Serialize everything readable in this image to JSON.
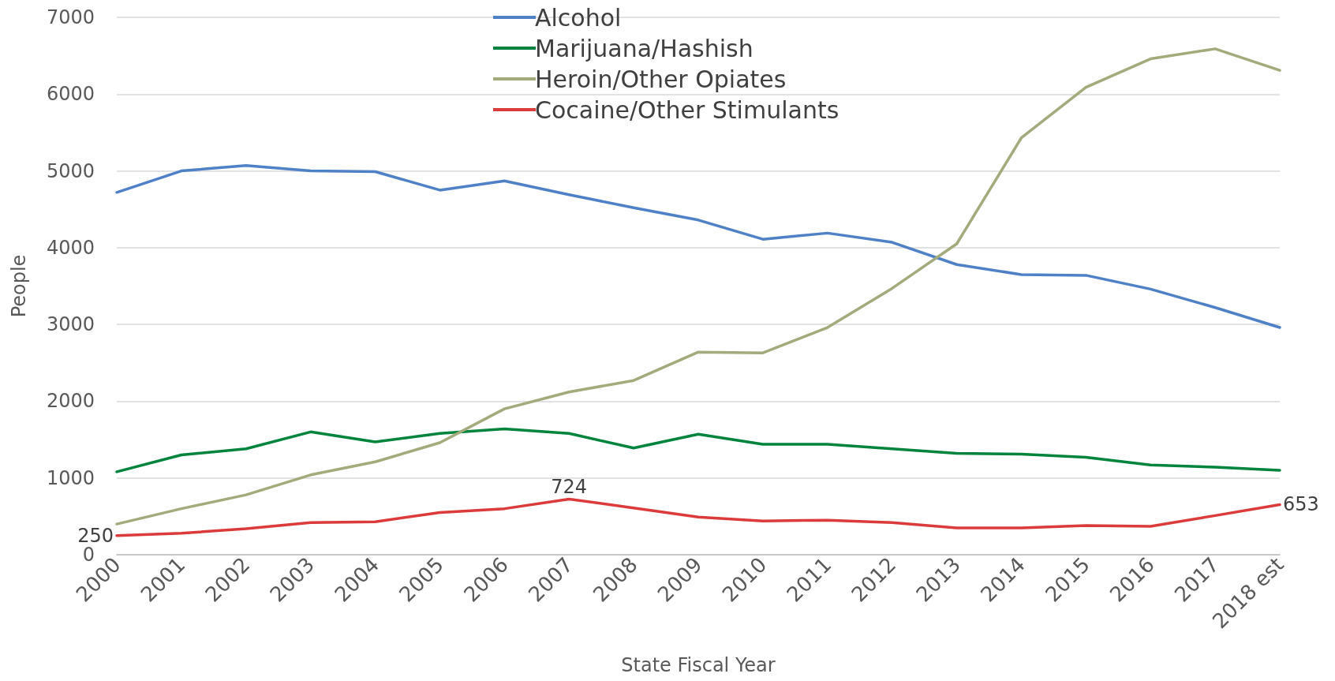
{
  "chart_data": {
    "type": "line",
    "xlabel": "State Fiscal Year",
    "ylabel": "People",
    "categories": [
      "2000",
      "2001",
      "2002",
      "2003",
      "2004",
      "2005",
      "2006",
      "2007",
      "2008",
      "2009",
      "2010",
      "2011",
      "2012",
      "2013",
      "2014",
      "2015",
      "2016",
      "2017",
      "2018 est"
    ],
    "series": [
      {
        "name": "Alcohol",
        "color": "#4f81c7",
        "values": [
          4720,
          5000,
          5070,
          5000,
          4990,
          4750,
          4870,
          4690,
          4520,
          4360,
          4110,
          4190,
          4070,
          3780,
          3650,
          3640,
          3460,
          3220,
          2960
        ]
      },
      {
        "name": "Marijuana/Hashish",
        "color": "#00843d",
        "values": [
          1080,
          1300,
          1380,
          1600,
          1470,
          1580,
          1640,
          1580,
          1390,
          1570,
          1440,
          1440,
          1380,
          1320,
          1310,
          1270,
          1170,
          1140,
          1100
        ]
      },
      {
        "name": "Heroin/Other Opiates",
        "color": "#a3ab7c",
        "values": [
          400,
          600,
          780,
          1040,
          1210,
          1460,
          1900,
          2120,
          2270,
          2640,
          2630,
          2960,
          3470,
          4050,
          5430,
          6090,
          6460,
          6590,
          6310
        ]
      },
      {
        "name": "Cocaine/Other Stimulants",
        "color": "#dc3b3b",
        "values": [
          250,
          280,
          340,
          420,
          430,
          550,
          600,
          724,
          610,
          490,
          440,
          450,
          420,
          350,
          350,
          380,
          370,
          510,
          653
        ],
        "value_labels": [
          "250",
          null,
          null,
          null,
          null,
          null,
          null,
          "724",
          null,
          null,
          null,
          null,
          null,
          null,
          null,
          null,
          null,
          null,
          "653"
        ]
      }
    ],
    "ylim": [
      0,
      7000
    ],
    "yticks": [
      0,
      1000,
      2000,
      3000,
      4000,
      5000,
      6000,
      7000
    ],
    "grid": "y",
    "legend": "top",
    "marker": "none",
    "line_style": "solid"
  }
}
